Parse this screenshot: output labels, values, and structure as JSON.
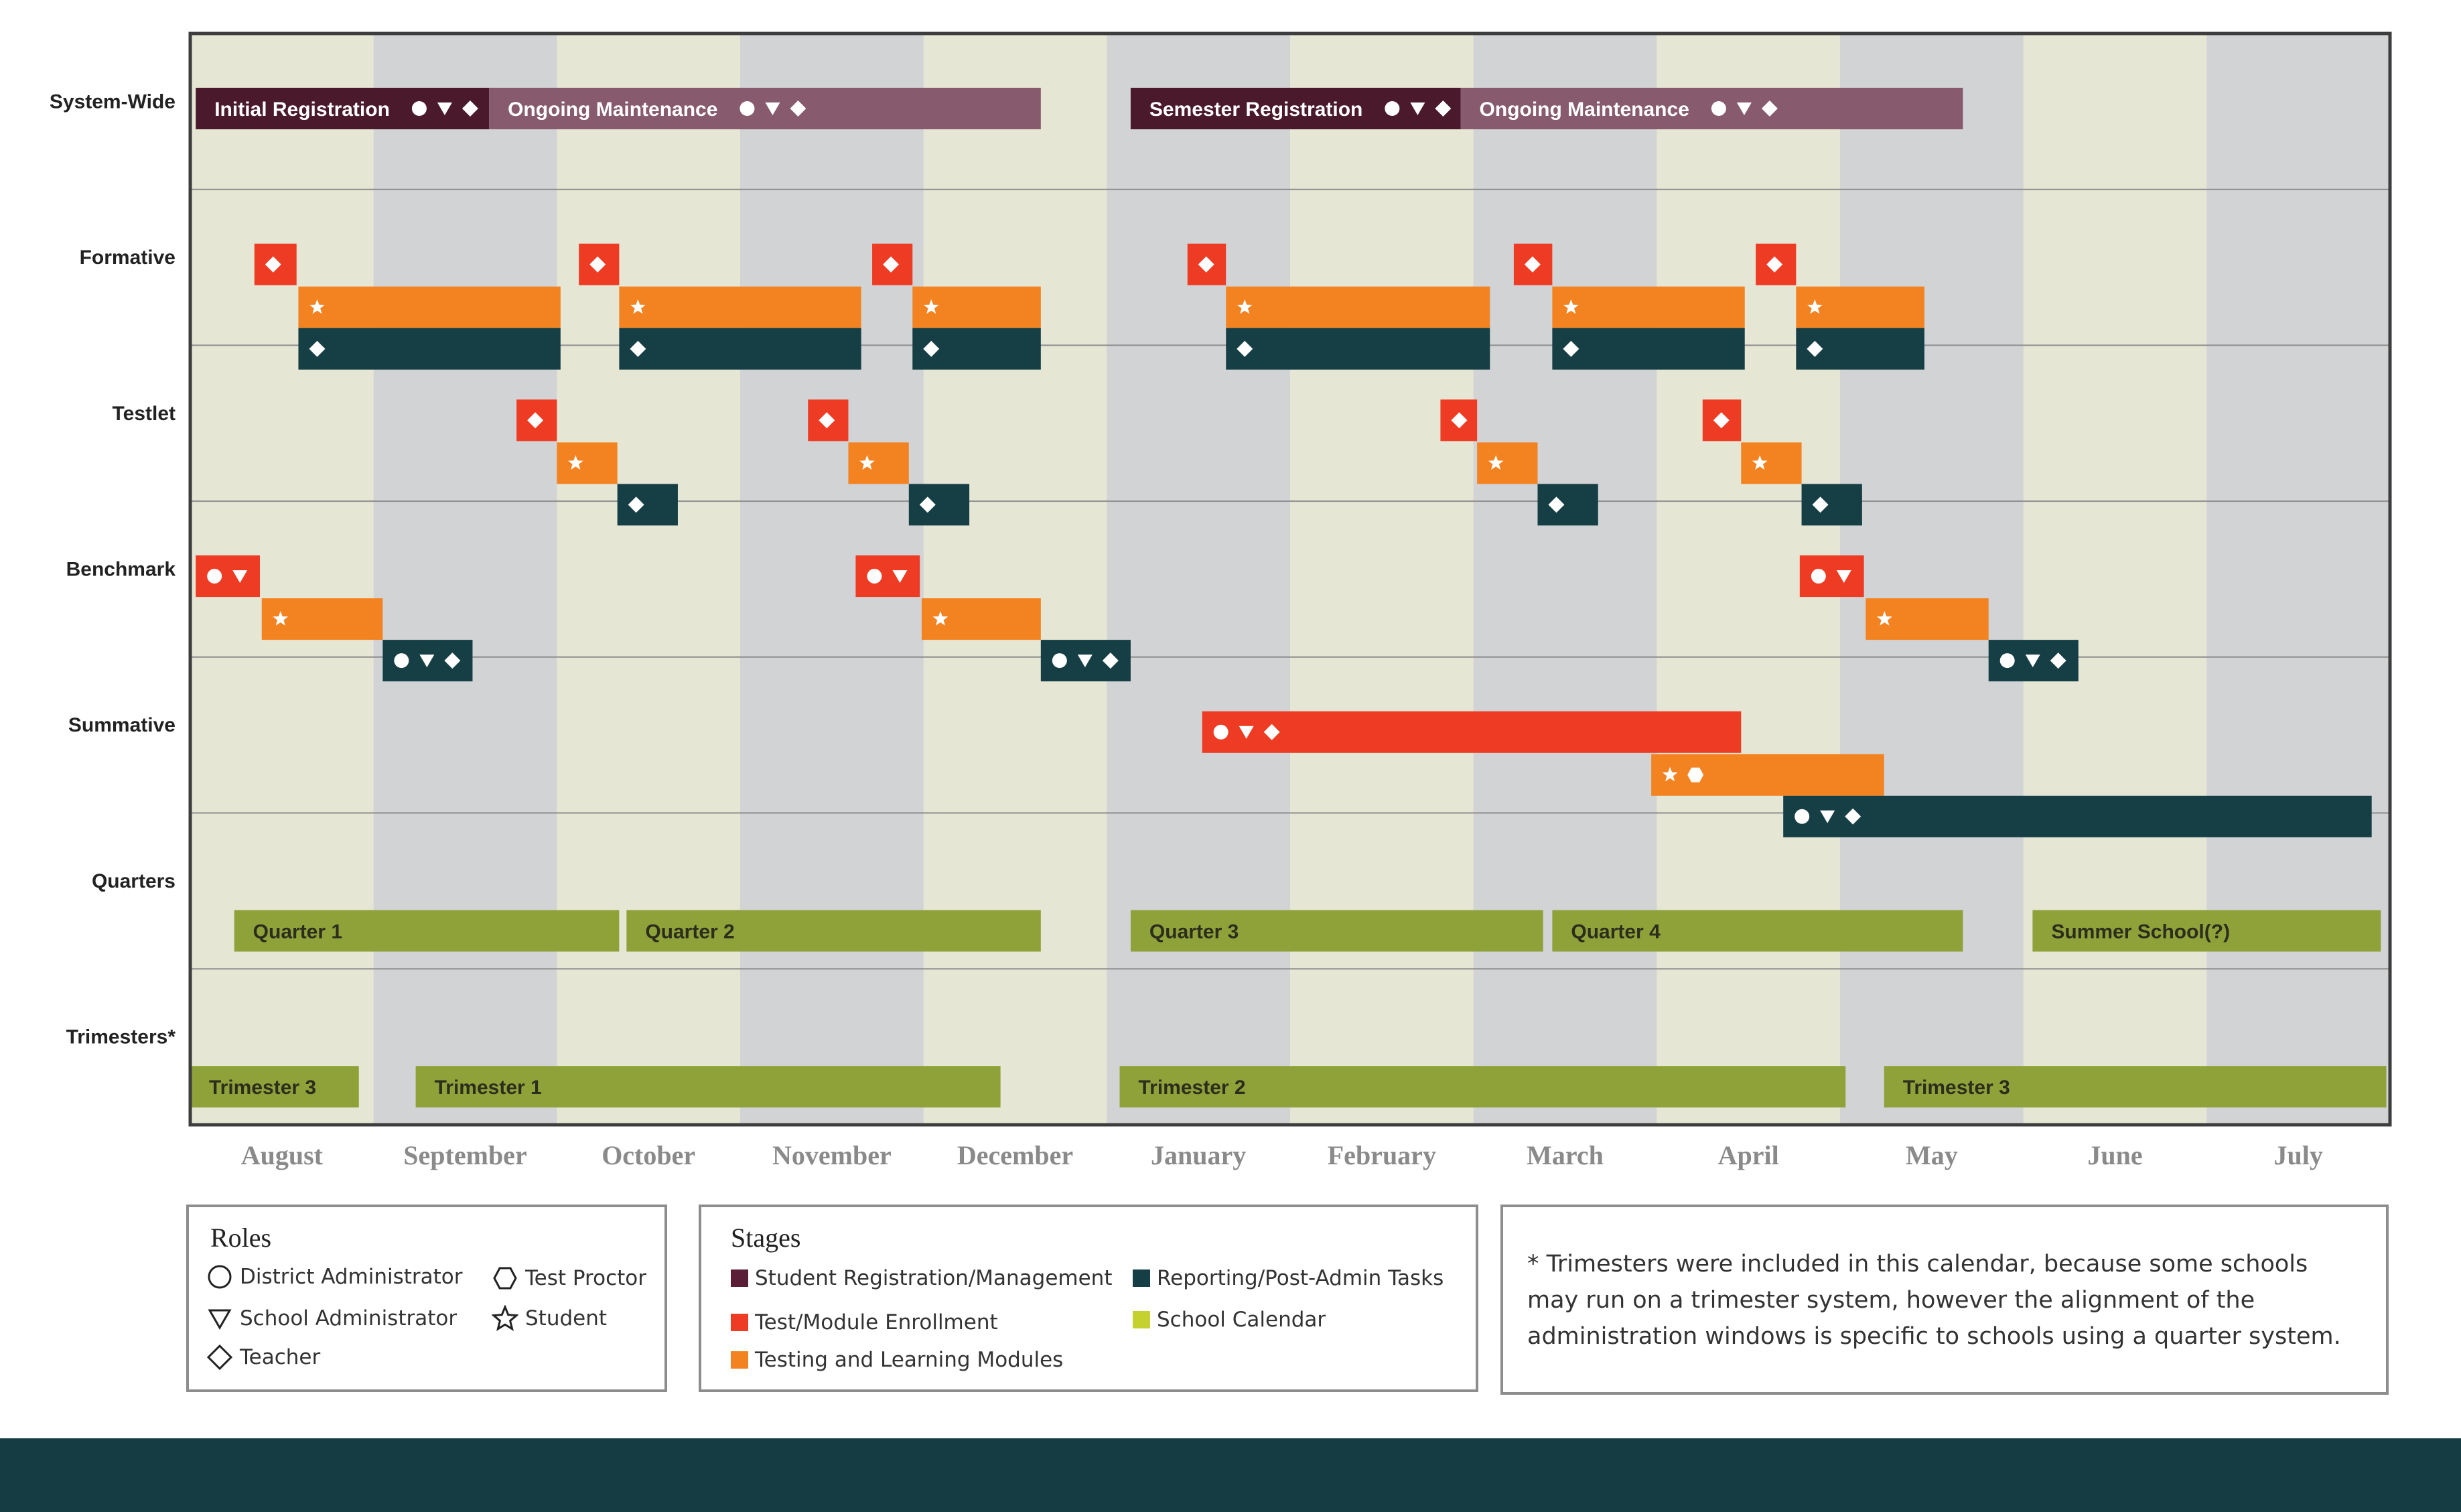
{
  "chart_data": {
    "type": "gantt",
    "title": "",
    "months": [
      "August",
      "September",
      "October",
      "November",
      "December",
      "January",
      "February",
      "March",
      "April",
      "May",
      "June",
      "July"
    ],
    "rows": [
      "System-Wide",
      "Formative",
      "Testlet",
      "Benchmark",
      "Summative",
      "Quarters",
      "Trimesters*"
    ],
    "colors": {
      "registration_dark": "#4a1a2c",
      "registration_light": "#875b6d",
      "enrollment": "#ee3b24",
      "testing": "#f38221",
      "reporting": "#163f45",
      "calendar": "#8fa23a",
      "month_light": "#e6e6d5",
      "month_dark": "#d2d3d5",
      "footer": "#153c43"
    },
    "bars": [
      {
        "row": 0,
        "lane": 0,
        "start": 0.03,
        "end": 1.63,
        "stage": "registration_dark",
        "label": "Initial Registration",
        "roles": [
          "circle",
          "triangle",
          "diamond"
        ]
      },
      {
        "row": 0,
        "lane": 0,
        "start": 1.63,
        "end": 4.64,
        "stage": "registration_light",
        "label": "Ongoing Maintenance",
        "roles": [
          "circle",
          "triangle",
          "diamond"
        ]
      },
      {
        "row": 0,
        "lane": 0,
        "start": 5.13,
        "end": 6.93,
        "stage": "registration_dark",
        "label": "Semester Registration",
        "roles": [
          "circle",
          "triangle",
          "diamond"
        ]
      },
      {
        "row": 0,
        "lane": 0,
        "start": 6.93,
        "end": 9.67,
        "stage": "registration_light",
        "label": "Ongoing Maintenance",
        "roles": [
          "circle",
          "triangle",
          "diamond"
        ]
      },
      {
        "row": 1,
        "lane": 0,
        "start": 0.35,
        "end": 0.58,
        "stage": "enrollment",
        "label": "",
        "roles": [
          "diamond"
        ]
      },
      {
        "row": 1,
        "lane": 1,
        "start": 0.59,
        "end": 2.02,
        "stage": "testing",
        "label": "",
        "roles": [
          "star"
        ]
      },
      {
        "row": 1,
        "lane": 2,
        "start": 0.59,
        "end": 2.02,
        "stage": "reporting",
        "label": "",
        "roles": [
          "diamond"
        ]
      },
      {
        "row": 1,
        "lane": 0,
        "start": 2.12,
        "end": 2.34,
        "stage": "enrollment",
        "label": "",
        "roles": [
          "diamond"
        ]
      },
      {
        "row": 1,
        "lane": 1,
        "start": 2.34,
        "end": 3.66,
        "stage": "testing",
        "label": "",
        "roles": [
          "star"
        ]
      },
      {
        "row": 1,
        "lane": 2,
        "start": 2.34,
        "end": 3.66,
        "stage": "reporting",
        "label": "",
        "roles": [
          "diamond"
        ]
      },
      {
        "row": 1,
        "lane": 0,
        "start": 3.72,
        "end": 3.94,
        "stage": "enrollment",
        "label": "",
        "roles": [
          "diamond"
        ]
      },
      {
        "row": 1,
        "lane": 1,
        "start": 3.94,
        "end": 4.64,
        "stage": "testing",
        "label": "",
        "roles": [
          "star"
        ]
      },
      {
        "row": 1,
        "lane": 2,
        "start": 3.94,
        "end": 4.64,
        "stage": "reporting",
        "label": "",
        "roles": [
          "diamond"
        ]
      },
      {
        "row": 1,
        "lane": 0,
        "start": 5.44,
        "end": 5.65,
        "stage": "enrollment",
        "label": "",
        "roles": [
          "diamond"
        ]
      },
      {
        "row": 1,
        "lane": 1,
        "start": 5.65,
        "end": 7.09,
        "stage": "testing",
        "label": "",
        "roles": [
          "star"
        ]
      },
      {
        "row": 1,
        "lane": 2,
        "start": 5.65,
        "end": 7.09,
        "stage": "reporting",
        "label": "",
        "roles": [
          "diamond"
        ]
      },
      {
        "row": 1,
        "lane": 0,
        "start": 7.22,
        "end": 7.43,
        "stage": "enrollment",
        "label": "",
        "roles": [
          "diamond"
        ]
      },
      {
        "row": 1,
        "lane": 1,
        "start": 7.43,
        "end": 8.48,
        "stage": "testing",
        "label": "",
        "roles": [
          "star"
        ]
      },
      {
        "row": 1,
        "lane": 2,
        "start": 7.43,
        "end": 8.48,
        "stage": "reporting",
        "label": "",
        "roles": [
          "diamond"
        ]
      },
      {
        "row": 1,
        "lane": 0,
        "start": 8.54,
        "end": 8.76,
        "stage": "enrollment",
        "label": "",
        "roles": [
          "diamond"
        ]
      },
      {
        "row": 1,
        "lane": 1,
        "start": 8.76,
        "end": 9.46,
        "stage": "testing",
        "label": "",
        "roles": [
          "star"
        ]
      },
      {
        "row": 1,
        "lane": 2,
        "start": 8.76,
        "end": 9.46,
        "stage": "reporting",
        "label": "",
        "roles": [
          "diamond"
        ]
      },
      {
        "row": 2,
        "lane": 0,
        "start": 1.78,
        "end": 2.0,
        "stage": "enrollment",
        "label": "",
        "roles": [
          "diamond"
        ]
      },
      {
        "row": 2,
        "lane": 1,
        "start": 2.0,
        "end": 2.33,
        "stage": "testing",
        "label": "",
        "roles": [
          "star"
        ]
      },
      {
        "row": 2,
        "lane": 2,
        "start": 2.33,
        "end": 2.66,
        "stage": "reporting",
        "label": "",
        "roles": [
          "diamond"
        ]
      },
      {
        "row": 2,
        "lane": 0,
        "start": 3.37,
        "end": 3.59,
        "stage": "enrollment",
        "label": "",
        "roles": [
          "diamond"
        ]
      },
      {
        "row": 2,
        "lane": 1,
        "start": 3.59,
        "end": 3.92,
        "stage": "testing",
        "label": "",
        "roles": [
          "star"
        ]
      },
      {
        "row": 2,
        "lane": 2,
        "start": 3.92,
        "end": 4.25,
        "stage": "reporting",
        "label": "",
        "roles": [
          "diamond"
        ]
      },
      {
        "row": 2,
        "lane": 0,
        "start": 6.82,
        "end": 7.02,
        "stage": "enrollment",
        "label": "",
        "roles": [
          "diamond"
        ]
      },
      {
        "row": 2,
        "lane": 1,
        "start": 7.02,
        "end": 7.35,
        "stage": "testing",
        "label": "",
        "roles": [
          "star"
        ]
      },
      {
        "row": 2,
        "lane": 2,
        "start": 7.35,
        "end": 7.68,
        "stage": "reporting",
        "label": "",
        "roles": [
          "diamond"
        ]
      },
      {
        "row": 2,
        "lane": 0,
        "start": 8.25,
        "end": 8.46,
        "stage": "enrollment",
        "label": "",
        "roles": [
          "diamond"
        ]
      },
      {
        "row": 2,
        "lane": 1,
        "start": 8.46,
        "end": 8.79,
        "stage": "testing",
        "label": "",
        "roles": [
          "star"
        ]
      },
      {
        "row": 2,
        "lane": 2,
        "start": 8.79,
        "end": 9.12,
        "stage": "reporting",
        "label": "",
        "roles": [
          "diamond"
        ]
      },
      {
        "row": 3,
        "lane": 0,
        "start": 0.03,
        "end": 0.38,
        "stage": "enrollment",
        "label": "",
        "roles": [
          "circle",
          "triangle"
        ]
      },
      {
        "row": 3,
        "lane": 1,
        "start": 0.39,
        "end": 1.05,
        "stage": "testing",
        "label": "",
        "roles": [
          "star"
        ]
      },
      {
        "row": 3,
        "lane": 2,
        "start": 1.05,
        "end": 1.54,
        "stage": "reporting",
        "label": "",
        "roles": [
          "circle",
          "triangle",
          "diamond"
        ]
      },
      {
        "row": 3,
        "lane": 0,
        "start": 3.63,
        "end": 3.98,
        "stage": "enrollment",
        "label": "",
        "roles": [
          "circle",
          "triangle"
        ]
      },
      {
        "row": 3,
        "lane": 1,
        "start": 3.99,
        "end": 4.64,
        "stage": "testing",
        "label": "",
        "roles": [
          "star"
        ]
      },
      {
        "row": 3,
        "lane": 2,
        "start": 4.64,
        "end": 5.13,
        "stage": "reporting",
        "label": "",
        "roles": [
          "circle",
          "triangle",
          "diamond"
        ]
      },
      {
        "row": 3,
        "lane": 0,
        "start": 8.78,
        "end": 9.13,
        "stage": "enrollment",
        "label": "",
        "roles": [
          "circle",
          "triangle"
        ]
      },
      {
        "row": 3,
        "lane": 1,
        "start": 9.14,
        "end": 9.81,
        "stage": "testing",
        "label": "",
        "roles": [
          "star"
        ]
      },
      {
        "row": 3,
        "lane": 2,
        "start": 9.81,
        "end": 10.3,
        "stage": "reporting",
        "label": "",
        "roles": [
          "circle",
          "triangle",
          "diamond"
        ]
      },
      {
        "row": 4,
        "lane": 0,
        "start": 5.52,
        "end": 8.46,
        "stage": "enrollment",
        "label": "",
        "roles": [
          "circle",
          "triangle",
          "diamond"
        ]
      },
      {
        "row": 4,
        "lane": 1,
        "start": 7.97,
        "end": 9.24,
        "stage": "testing",
        "label": "",
        "roles": [
          "star",
          "hexagon"
        ]
      },
      {
        "row": 4,
        "lane": 2,
        "start": 8.69,
        "end": 11.9,
        "stage": "reporting",
        "label": "",
        "roles": [
          "circle",
          "triangle",
          "diamond"
        ]
      },
      {
        "row": 5,
        "lane": 1,
        "start": 0.24,
        "end": 2.34,
        "stage": "calendar",
        "label": "Quarter 1",
        "roles": []
      },
      {
        "row": 5,
        "lane": 1,
        "start": 2.38,
        "end": 4.64,
        "stage": "calendar",
        "label": "Quarter 2",
        "roles": []
      },
      {
        "row": 5,
        "lane": 1,
        "start": 5.13,
        "end": 7.38,
        "stage": "calendar",
        "label": "Quarter 3",
        "roles": []
      },
      {
        "row": 5,
        "lane": 1,
        "start": 7.43,
        "end": 9.67,
        "stage": "calendar",
        "label": "Quarter 4",
        "roles": []
      },
      {
        "row": 5,
        "lane": 1,
        "start": 10.05,
        "end": 11.95,
        "stage": "calendar",
        "label": "Summer School(?)",
        "roles": []
      },
      {
        "row": 6,
        "lane": 1,
        "start": 0.0,
        "end": 0.92,
        "stage": "calendar",
        "label": "Trimester 3",
        "roles": []
      },
      {
        "row": 6,
        "lane": 1,
        "start": 1.23,
        "end": 4.42,
        "stage": "calendar",
        "label": "Trimester 1",
        "roles": []
      },
      {
        "row": 6,
        "lane": 1,
        "start": 5.07,
        "end": 9.03,
        "stage": "calendar",
        "label": "Trimester 2",
        "roles": []
      },
      {
        "row": 6,
        "lane": 1,
        "start": 9.24,
        "end": 11.98,
        "stage": "calendar",
        "label": "Trimester 3",
        "roles": []
      }
    ]
  },
  "legend": {
    "roles": {
      "title": "Roles",
      "items": [
        {
          "icon": "circle",
          "label": "District Administrator"
        },
        {
          "icon": "hexagon",
          "label": "Test Proctor"
        },
        {
          "icon": "triangle",
          "label": "School Administrator"
        },
        {
          "icon": "star",
          "label": "Student"
        },
        {
          "icon": "diamond",
          "label": "Teacher"
        }
      ]
    },
    "stages": {
      "title": "Stages",
      "items": [
        {
          "color": "#5a1f36",
          "label": "Student Registration/Management"
        },
        {
          "color": "#163f45",
          "label": "Reporting/Post-Admin Tasks"
        },
        {
          "color": "#ee3b24",
          "label": "Test/Module Enrollment"
        },
        {
          "color": "#c4d12e",
          "label": "School Calendar"
        },
        {
          "color": "#f38221",
          "label": "Testing and Learning Modules"
        }
      ]
    },
    "note": "* Trimesters were included in this calendar, because some schools may run on a trimester system, however the alignment of the administration windows is specific to schools using a quarter system."
  }
}
